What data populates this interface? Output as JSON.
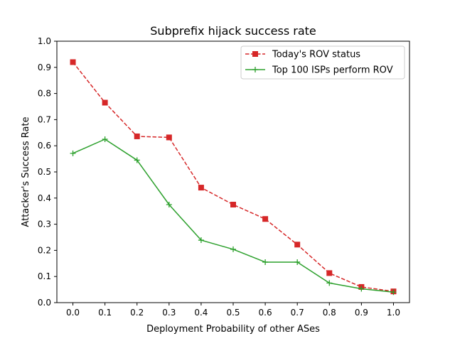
{
  "chart_data": {
    "type": "line",
    "title": "Subprefix hijack success rate",
    "xlabel": "Deployment Probability of other ASes",
    "ylabel": "Attacker's Success Rate",
    "x": [
      0.0,
      0.1,
      0.2,
      0.3,
      0.4,
      0.5,
      0.6,
      0.7,
      0.8,
      0.9,
      1.0
    ],
    "x_tick_labels": [
      "0.0",
      "0.1",
      "0.2",
      "0.3",
      "0.4",
      "0.5",
      "0.6",
      "0.7",
      "0.8",
      "0.9",
      "1.0"
    ],
    "y_tick_labels": [
      "0.0",
      "0.1",
      "0.2",
      "0.3",
      "0.4",
      "0.5",
      "0.6",
      "0.7",
      "0.8",
      "0.9",
      "1.0"
    ],
    "xlim": [
      -0.05,
      1.05
    ],
    "ylim": [
      0.0,
      1.0
    ],
    "grid": false,
    "legend_position": "top-right",
    "series": [
      {
        "name": "Today's ROV status",
        "color": "#d62728",
        "linestyle": "dashed",
        "marker": "square",
        "values": [
          0.92,
          0.765,
          0.636,
          0.632,
          0.44,
          0.375,
          0.32,
          0.222,
          0.113,
          0.06,
          0.043
        ]
      },
      {
        "name": "Top 100 ISPs perform ROV",
        "color": "#2ca02c",
        "linestyle": "solid",
        "marker": "plus",
        "values": [
          0.571,
          0.625,
          0.545,
          0.375,
          0.239,
          0.204,
          0.155,
          0.155,
          0.075,
          0.053,
          0.04
        ]
      }
    ]
  }
}
